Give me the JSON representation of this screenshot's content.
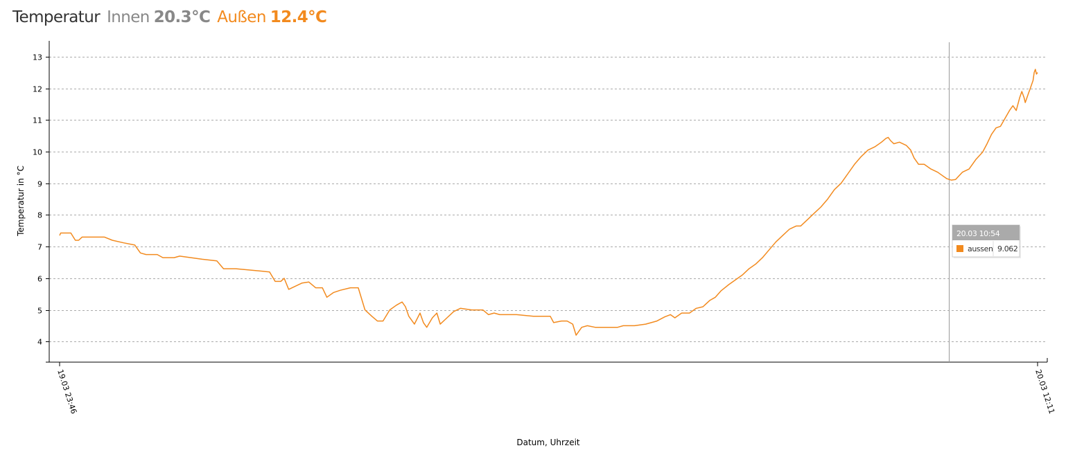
{
  "header": {
    "title": "Temperatur",
    "inside_label": "Innen",
    "inside_value": "20.3°C",
    "outside_label": "Außen",
    "outside_value": "12.4°C"
  },
  "colors": {
    "inside": "#888888",
    "outside": "#f28a1e",
    "grid": "#aaaaaa",
    "tooltip_header": "#aaaaaa"
  },
  "chart_data": {
    "type": "line",
    "xlabel": "Datum, Uhrzeit",
    "ylabel": "Temperatur in °C",
    "x_range": [
      "19.03 23:46",
      "20.03 12:11"
    ],
    "x_tick_labels": [
      "19.03 23:46",
      "20.03 12:11"
    ],
    "ylim": [
      3.35,
      13.5
    ],
    "y_ticks": [
      4,
      5,
      6,
      7,
      8,
      9,
      10,
      11,
      12,
      13
    ],
    "grid": "horizontal-dashed",
    "series": [
      {
        "name": "aussen",
        "color": "#f28a1e",
        "points": [
          [
            "23:46",
            7.35
          ],
          [
            "23:47",
            7.43
          ],
          [
            "23:56",
            7.43
          ],
          [
            "24:00",
            7.2
          ],
          [
            "24:03",
            7.2
          ],
          [
            "24:06",
            7.3
          ],
          [
            "24:26",
            7.3
          ],
          [
            "24:33",
            7.2
          ],
          [
            "24:43",
            7.12
          ],
          [
            "24:53",
            7.05
          ],
          [
            "24:58",
            6.8
          ],
          [
            "25:03",
            6.75
          ],
          [
            "25:13",
            6.75
          ],
          [
            "25:18",
            6.65
          ],
          [
            "25:28",
            6.65
          ],
          [
            "25:33",
            6.7
          ],
          [
            "25:43",
            6.65
          ],
          [
            "25:53",
            6.6
          ],
          [
            "26:06",
            6.55
          ],
          [
            "26:12",
            6.3
          ],
          [
            "26:16",
            6.3
          ],
          [
            "26:23",
            6.3
          ],
          [
            "26:38",
            6.25
          ],
          [
            "26:53",
            6.2
          ],
          [
            "26:58",
            5.9
          ],
          [
            "27:03",
            5.9
          ],
          [
            "27:06",
            6.0
          ],
          [
            "27:10",
            5.65
          ],
          [
            "27:16",
            5.75
          ],
          [
            "27:22",
            5.85
          ],
          [
            "27:28",
            5.88
          ],
          [
            "27:34",
            5.7
          ],
          [
            "27:40",
            5.7
          ],
          [
            "27:44",
            5.4
          ],
          [
            "27:50",
            5.55
          ],
          [
            "27:56",
            5.62
          ],
          [
            "28:05",
            5.7
          ],
          [
            "28:12",
            5.7
          ],
          [
            "28:18",
            5.0
          ],
          [
            "28:24",
            4.8
          ],
          [
            "28:29",
            4.65
          ],
          [
            "28:34",
            4.65
          ],
          [
            "28:40",
            5.0
          ],
          [
            "28:46",
            5.15
          ],
          [
            "28:51",
            5.25
          ],
          [
            "28:54",
            5.1
          ],
          [
            "28:57",
            4.8
          ],
          [
            "29:02",
            4.55
          ],
          [
            "29:07",
            4.9
          ],
          [
            "29:10",
            4.6
          ],
          [
            "29:13",
            4.45
          ],
          [
            "29:18",
            4.75
          ],
          [
            "29:22",
            4.9
          ],
          [
            "29:25",
            4.55
          ],
          [
            "29:31",
            4.75
          ],
          [
            "29:37",
            4.95
          ],
          [
            "29:43",
            5.05
          ],
          [
            "29:53",
            5.0
          ],
          [
            "30:03",
            5.0
          ],
          [
            "30:08",
            4.85
          ],
          [
            "30:13",
            4.9
          ],
          [
            "30:18",
            4.85
          ],
          [
            "30:33",
            4.85
          ],
          [
            "30:48",
            4.8
          ],
          [
            "31:03",
            4.8
          ],
          [
            "31:06",
            4.6
          ],
          [
            "31:13",
            4.65
          ],
          [
            "31:18",
            4.65
          ],
          [
            "31:23",
            4.55
          ],
          [
            "31:26",
            4.2
          ],
          [
            "31:31",
            4.45
          ],
          [
            "31:36",
            4.5
          ],
          [
            "31:43",
            4.45
          ],
          [
            "31:58",
            4.45
          ],
          [
            "32:03",
            4.45
          ],
          [
            "32:08",
            4.5
          ],
          [
            "32:18",
            4.5
          ],
          [
            "32:28",
            4.55
          ],
          [
            "32:38",
            4.65
          ],
          [
            "32:45",
            4.78
          ],
          [
            "32:50",
            4.85
          ],
          [
            "32:54",
            4.75
          ],
          [
            "33:00",
            4.9
          ],
          [
            "33:07",
            4.9
          ],
          [
            "33:13",
            5.05
          ],
          [
            "33:19",
            5.1
          ],
          [
            "33:25",
            5.3
          ],
          [
            "33:30",
            5.4
          ],
          [
            "33:35",
            5.6
          ],
          [
            "33:42",
            5.8
          ],
          [
            "33:48",
            5.95
          ],
          [
            "33:54",
            6.1
          ],
          [
            "34:00",
            6.3
          ],
          [
            "34:06",
            6.45
          ],
          [
            "34:12",
            6.65
          ],
          [
            "34:18",
            6.9
          ],
          [
            "34:24",
            7.15
          ],
          [
            "34:30",
            7.35
          ],
          [
            "34:36",
            7.55
          ],
          [
            "34:42",
            7.65
          ],
          [
            "34:46",
            7.65
          ],
          [
            "34:52",
            7.85
          ],
          [
            "34:58",
            8.05
          ],
          [
            "35:04",
            8.25
          ],
          [
            "35:10",
            8.5
          ],
          [
            "35:16",
            8.8
          ],
          [
            "35:22",
            9.0
          ],
          [
            "35:28",
            9.3
          ],
          [
            "35:34",
            9.6
          ],
          [
            "35:40",
            9.85
          ],
          [
            "35:46",
            10.05
          ],
          [
            "35:52",
            10.15
          ],
          [
            "35:58",
            10.3
          ],
          [
            "36:02",
            10.42
          ],
          [
            "36:04",
            10.45
          ],
          [
            "36:06",
            10.35
          ],
          [
            "36:09",
            10.25
          ],
          [
            "36:14",
            10.3
          ],
          [
            "36:20",
            10.2
          ],
          [
            "36:24",
            10.05
          ],
          [
            "36:27",
            9.8
          ],
          [
            "36:31",
            9.6
          ],
          [
            "36:36",
            9.6
          ],
          [
            "36:42",
            9.45
          ],
          [
            "36:48",
            9.35
          ],
          [
            "36:52",
            9.25
          ],
          [
            "36:56",
            9.15
          ],
          [
            "37:00",
            9.1
          ],
          [
            "37:04",
            9.12
          ],
          [
            "37:10",
            9.35
          ],
          [
            "37:16",
            9.45
          ],
          [
            "37:22",
            9.75
          ],
          [
            "37:28",
            9.98
          ],
          [
            "37:32",
            10.25
          ],
          [
            "37:36",
            10.55
          ],
          [
            "37:40",
            10.75
          ],
          [
            "37:44",
            10.8
          ],
          [
            "37:48",
            11.05
          ],
          [
            "37:52",
            11.3
          ],
          [
            "37:55",
            11.45
          ],
          [
            "37:58",
            11.3
          ],
          [
            "38:01",
            11.7
          ],
          [
            "38:03",
            11.9
          ],
          [
            "38:05",
            11.7
          ],
          [
            "38:06",
            11.55
          ],
          [
            "38:07",
            11.65
          ],
          [
            "38:09",
            11.85
          ],
          [
            "38:10",
            11.95
          ],
          [
            "38:11",
            12.05
          ],
          [
            "38:13",
            12.25
          ],
          [
            "38:14",
            12.5
          ],
          [
            "38:15",
            12.6
          ],
          [
            "38:16",
            12.45
          ],
          [
            "38:17",
            12.5
          ]
        ]
      }
    ],
    "tooltip": {
      "title": "20.03 10:54",
      "series_name": "aussen",
      "value": "9.062",
      "cursor_time": "36:58"
    }
  }
}
